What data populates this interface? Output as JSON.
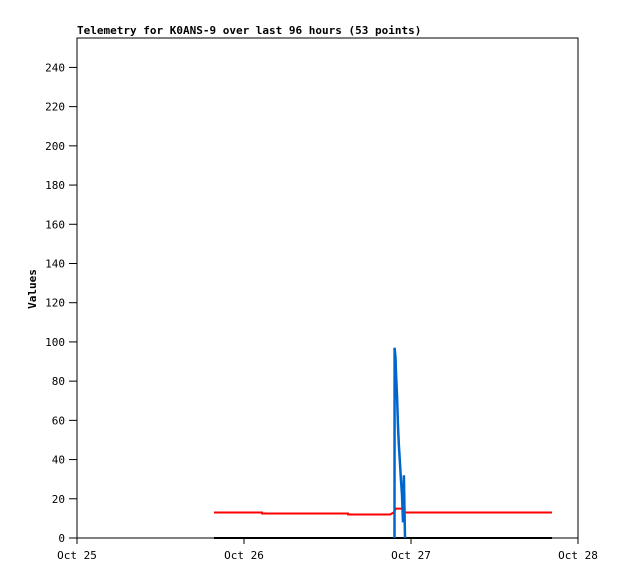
{
  "chart_data": {
    "type": "line",
    "title": "Telemetry for K0ANS-9 over last 96 hours (53 points)",
    "xlabel": "",
    "ylabel": "Values",
    "xlim": [
      "Oct 25 00:00",
      "Oct 28 00:00"
    ],
    "ylim": [
      0,
      255
    ],
    "x_ticks": [
      "Oct 25",
      "Oct 26",
      "Oct 27",
      "Oct 28"
    ],
    "y_ticks": [
      0,
      20,
      40,
      60,
      80,
      100,
      120,
      140,
      160,
      180,
      200,
      220,
      240
    ],
    "grid": false,
    "legend": "none",
    "series": [
      {
        "color": "#000000",
        "points": [
          [
            "Oct 25 19:41",
            0
          ],
          [
            "Oct 27 20:16",
            0
          ]
        ]
      },
      {
        "color": "#ff0000",
        "points": [
          [
            "Oct 25 19:41",
            13
          ],
          [
            "Oct 26 02:35",
            13
          ],
          [
            "Oct 26 02:36",
            12.5
          ],
          [
            "Oct 26 14:57",
            12.5
          ],
          [
            "Oct 26 14:58",
            12
          ],
          [
            "Oct 26 21:00",
            12
          ],
          [
            "Oct 26 21:30",
            13
          ],
          [
            "Oct 26 21:50",
            15
          ],
          [
            "Oct 26 22:55",
            15
          ],
          [
            "Oct 26 23:00",
            13
          ],
          [
            "Oct 27 20:16",
            13
          ]
        ]
      },
      {
        "color": "#0066cc",
        "points": [
          [
            "Oct 26 21:38",
            0
          ],
          [
            "Oct 26 21:39",
            97
          ],
          [
            "Oct 26 21:46",
            92
          ],
          [
            "Oct 26 21:51",
            84
          ],
          [
            "Oct 26 21:59",
            73
          ],
          [
            "Oct 26 22:08",
            57
          ],
          [
            "Oct 26 22:16",
            47
          ],
          [
            "Oct 26 22:25",
            38
          ],
          [
            "Oct 26 22:33",
            30
          ],
          [
            "Oct 26 22:42",
            22
          ],
          [
            "Oct 26 22:51",
            8
          ],
          [
            "Oct 26 22:59",
            32
          ],
          [
            "Oct 26 23:08",
            0
          ]
        ]
      }
    ]
  }
}
